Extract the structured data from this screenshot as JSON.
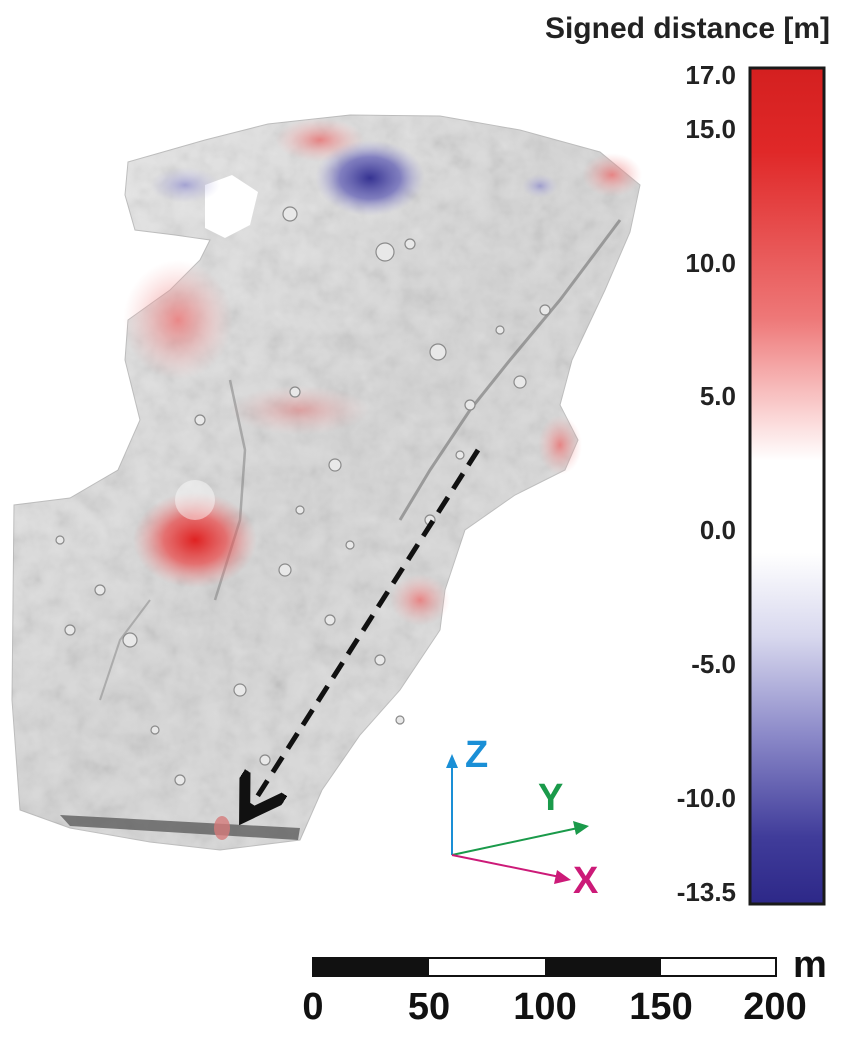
{
  "colorbar": {
    "title": "Signed distance [m]",
    "min": -13.5,
    "max": 17.0,
    "ticks": [
      "17.0",
      "15.0",
      "10.0",
      "5.0",
      "0.0",
      "-5.0",
      "-10.0",
      "-13.5"
    ],
    "tick_values": [
      17.0,
      15.0,
      10.0,
      5.0,
      0.0,
      -5.0,
      -10.0,
      -13.5
    ],
    "colors": {
      "positive": "#d42020",
      "neutral": "#ffffff",
      "negative": "#2d2888"
    }
  },
  "axes": {
    "z_label": "Z",
    "y_label": "Y",
    "x_label": "X",
    "z_color": "#1a8fd6",
    "y_color": "#1a9a4a",
    "x_color": "#cc1a78"
  },
  "scale_bar": {
    "unit": "m",
    "labels": [
      "0",
      "50",
      "100",
      "150",
      "200"
    ]
  }
}
